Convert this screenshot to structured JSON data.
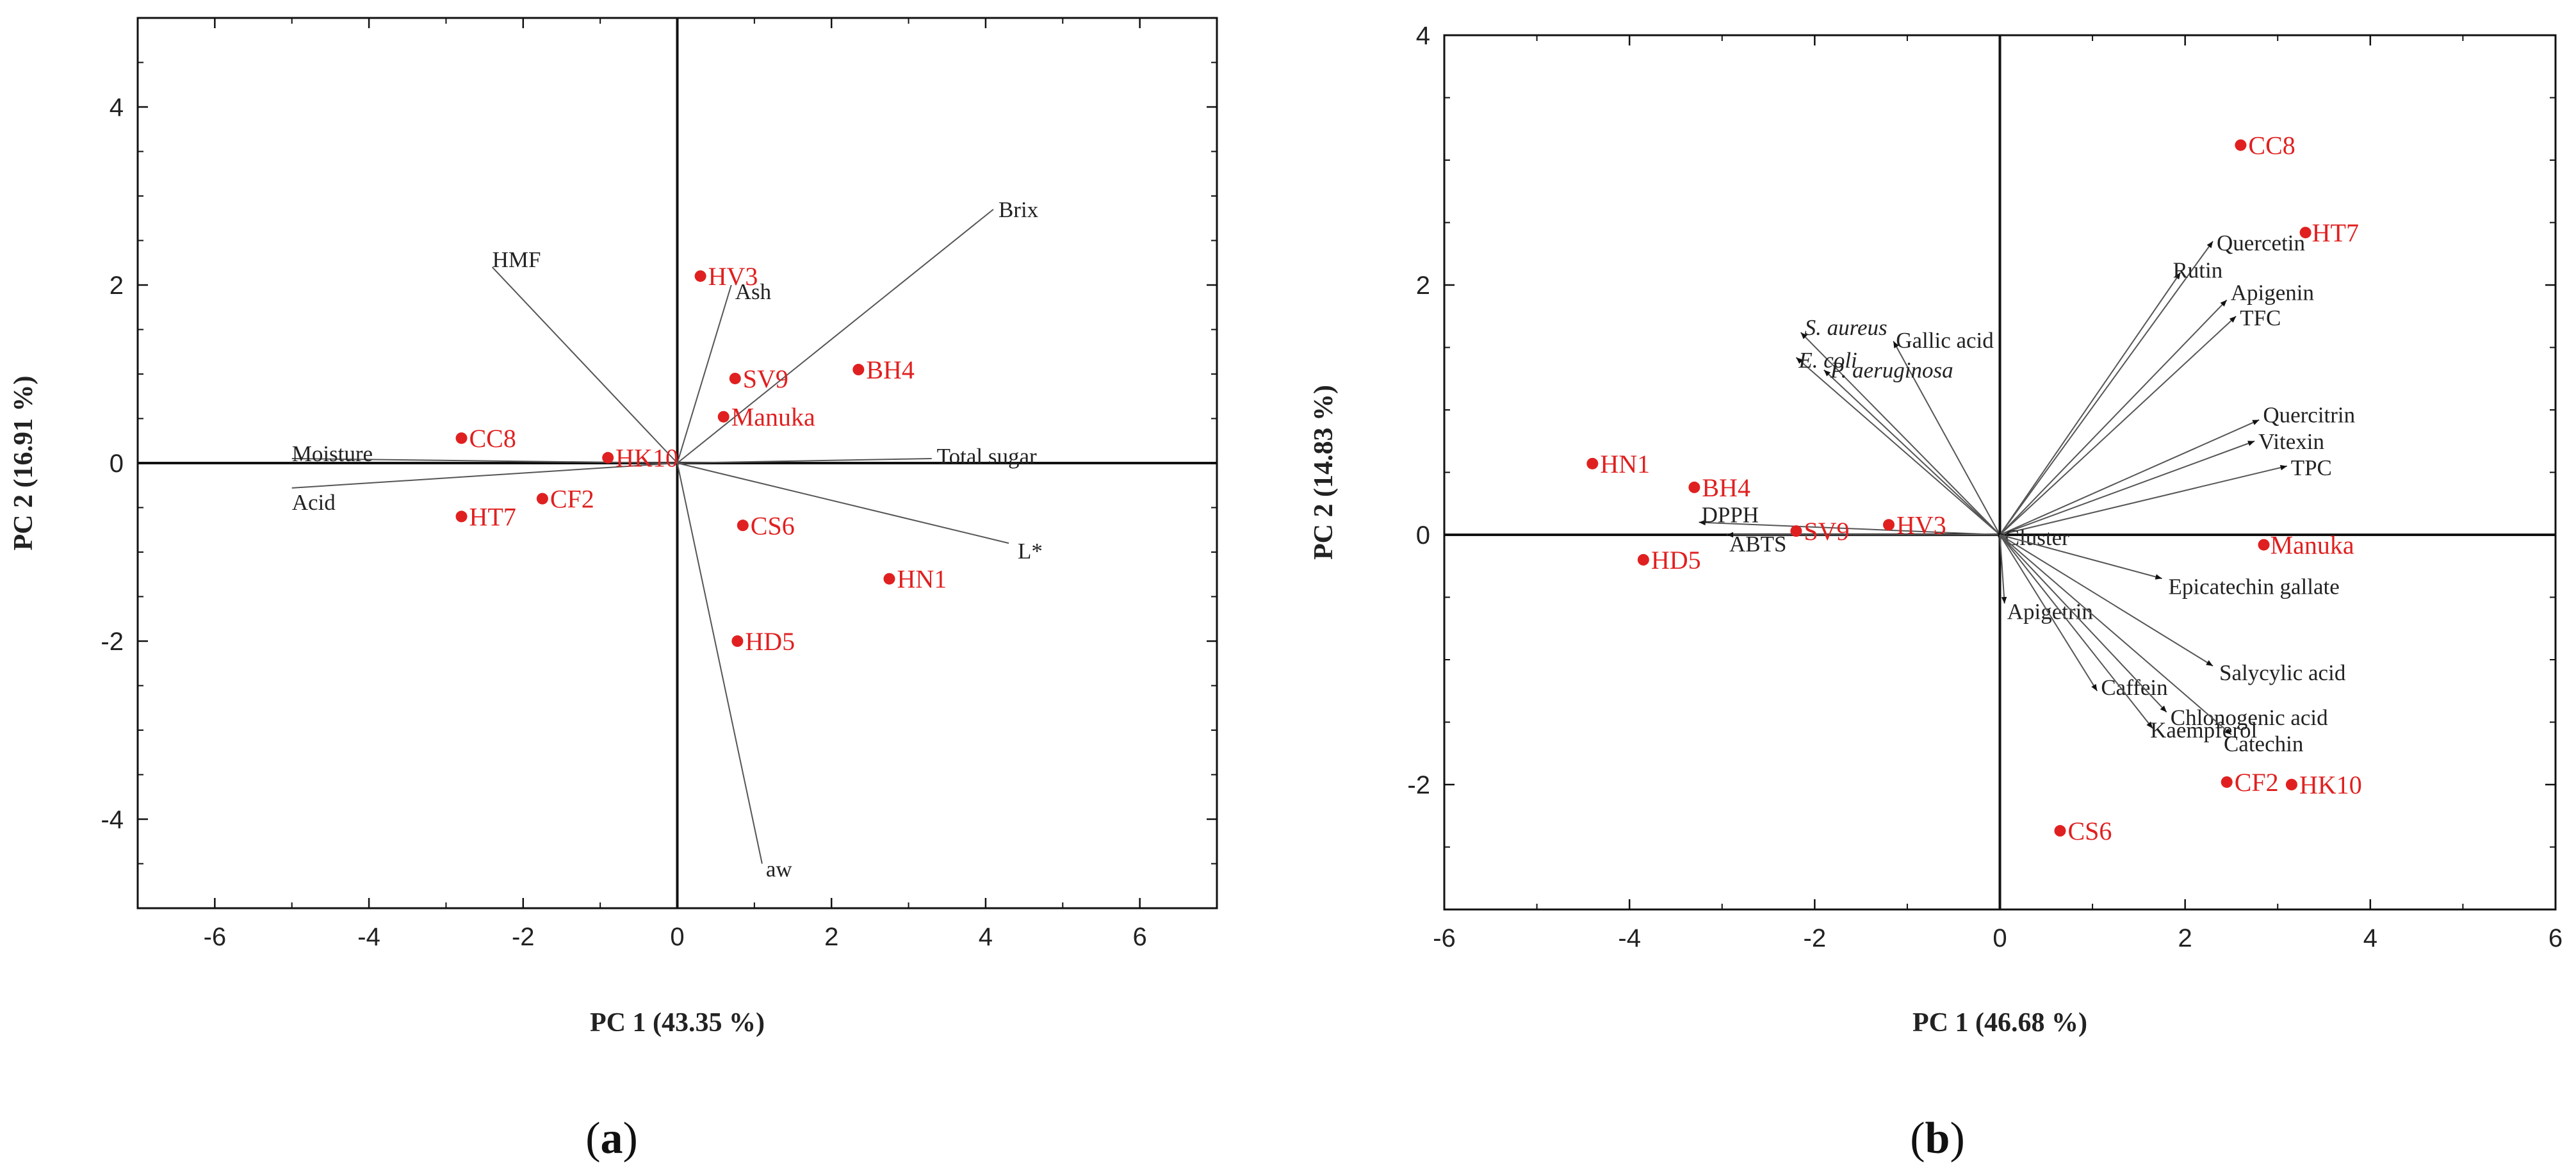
{
  "colors": {
    "sample": "#e02020",
    "axis": "#111111",
    "vector": "#555555",
    "text": "#222222"
  },
  "panel_labels": [
    "a",
    "b"
  ],
  "chart_data": [
    {
      "type": "scatter",
      "id": "a",
      "xlabel": "PC 1 (43.35 %)",
      "ylabel": "PC 2 (16.91 %)",
      "xlim": [
        -7,
        7
      ],
      "ylim": [
        -5,
        5
      ],
      "xticks": [
        -6,
        -4,
        -2,
        0,
        2,
        4,
        6
      ],
      "yticks": [
        -4,
        -2,
        0,
        2,
        4
      ],
      "samples": [
        {
          "label": "HV3",
          "x": 0.3,
          "y": 2.1
        },
        {
          "label": "SV9",
          "x": 0.75,
          "y": 0.95
        },
        {
          "label": "BH4",
          "x": 2.35,
          "y": 1.05
        },
        {
          "label": "Manuka",
          "x": 0.6,
          "y": 0.52
        },
        {
          "label": "CC8",
          "x": -2.8,
          "y": 0.28
        },
        {
          "label": "HK10",
          "x": -0.9,
          "y": 0.06
        },
        {
          "label": "CF2",
          "x": -1.75,
          "y": -0.4
        },
        {
          "label": "HT7",
          "x": -2.8,
          "y": -0.6
        },
        {
          "label": "CS6",
          "x": 0.85,
          "y": -0.7
        },
        {
          "label": "HN1",
          "x": 2.75,
          "y": -1.3
        },
        {
          "label": "HD5",
          "x": 0.78,
          "y": -2.0
        }
      ],
      "loadings": [
        {
          "label": "HMF",
          "x": -2.4,
          "y": 2.2,
          "italic": false
        },
        {
          "label": "Ash",
          "x": 0.7,
          "y": 2.0,
          "italic": false
        },
        {
          "label": "Brix",
          "x": 4.1,
          "y": 2.85,
          "italic": false
        },
        {
          "label": "Moisture",
          "x": -5.0,
          "y": 0.05,
          "italic": false
        },
        {
          "label": "Acid",
          "x": -5.0,
          "y": -0.28,
          "italic": false
        },
        {
          "label": "Total sugar",
          "x": 3.3,
          "y": 0.05,
          "italic": false
        },
        {
          "label": "L*",
          "x": 4.3,
          "y": -0.9,
          "italic": false
        },
        {
          "label": "aw",
          "x": 1.1,
          "y": -4.5,
          "italic": false
        }
      ]
    },
    {
      "type": "scatter",
      "id": "b",
      "xlabel": "PC 1 (46.68 %)",
      "ylabel": "PC 2 (14.83 %)",
      "xlim": [
        -6,
        6
      ],
      "ylim": [
        -3,
        4
      ],
      "xticks": [
        -6,
        -4,
        -2,
        0,
        2,
        4,
        6
      ],
      "yticks": [
        -2,
        0,
        2,
        4
      ],
      "samples": [
        {
          "label": "CC8",
          "x": 2.6,
          "y": 3.12
        },
        {
          "label": "HT7",
          "x": 3.3,
          "y": 2.42
        },
        {
          "label": "HN1",
          "x": -4.4,
          "y": 0.57
        },
        {
          "label": "BH4",
          "x": -3.3,
          "y": 0.38
        },
        {
          "label": "SV9",
          "x": -2.2,
          "y": 0.03
        },
        {
          "label": "HV3",
          "x": -1.2,
          "y": 0.08
        },
        {
          "label": "HD5",
          "x": -3.85,
          "y": -0.2
        },
        {
          "label": "Manuka",
          "x": 2.85,
          "y": -0.08
        },
        {
          "label": "CF2",
          "x": 2.45,
          "y": -1.98
        },
        {
          "label": "HK10",
          "x": 3.15,
          "y": -2.0
        },
        {
          "label": "CS6",
          "x": 0.65,
          "y": -2.37
        }
      ],
      "loadings": [
        {
          "label": "Quercetin",
          "x": 2.3,
          "y": 2.35,
          "italic": false
        },
        {
          "label": "Rutin",
          "x": 1.95,
          "y": 2.1,
          "italic": false
        },
        {
          "label": "Apigenin",
          "x": 2.45,
          "y": 1.88,
          "italic": false
        },
        {
          "label": "TFC",
          "x": 2.55,
          "y": 1.75,
          "italic": false
        },
        {
          "label": "S. aureus",
          "x": -2.15,
          "y": 1.62,
          "italic": true
        },
        {
          "label": "Gallic acid",
          "x": -1.15,
          "y": 1.55,
          "italic": false
        },
        {
          "label": "E. coli",
          "x": -2.2,
          "y": 1.42,
          "italic": true
        },
        {
          "label": "P. aeruginosa",
          "x": -1.9,
          "y": 1.32,
          "italic": true
        },
        {
          "label": "Quercitrin",
          "x": 2.8,
          "y": 0.92,
          "italic": false
        },
        {
          "label": "Vitexin",
          "x": 2.75,
          "y": 0.75,
          "italic": false
        },
        {
          "label": "TPC",
          "x": 3.1,
          "y": 0.55,
          "italic": false
        },
        {
          "label": "DPPH",
          "x": -3.25,
          "y": 0.1,
          "italic": false
        },
        {
          "label": "ABTS",
          "x": -2.95,
          "y": 0.0,
          "italic": false
        },
        {
          "label": "Cluster",
          "x": 0.05,
          "y": 0.0,
          "italic": false
        },
        {
          "label": "Epicatechin gallate",
          "x": 1.75,
          "y": -0.35,
          "italic": false
        },
        {
          "label": "Apigetrin",
          "x": 0.05,
          "y": -0.55,
          "italic": false
        },
        {
          "label": "Salycylic acid",
          "x": 2.3,
          "y": -1.05,
          "italic": false
        },
        {
          "label": "Caffein",
          "x": 1.05,
          "y": -1.25,
          "italic": false
        },
        {
          "label": "Chlonogenic acid",
          "x": 1.8,
          "y": -1.42,
          "italic": false
        },
        {
          "label": "Kaempferol",
          "x": 1.65,
          "y": -1.55,
          "italic": false
        },
        {
          "label": "Catechin",
          "x": 2.5,
          "y": -1.6,
          "italic": false
        }
      ]
    }
  ]
}
